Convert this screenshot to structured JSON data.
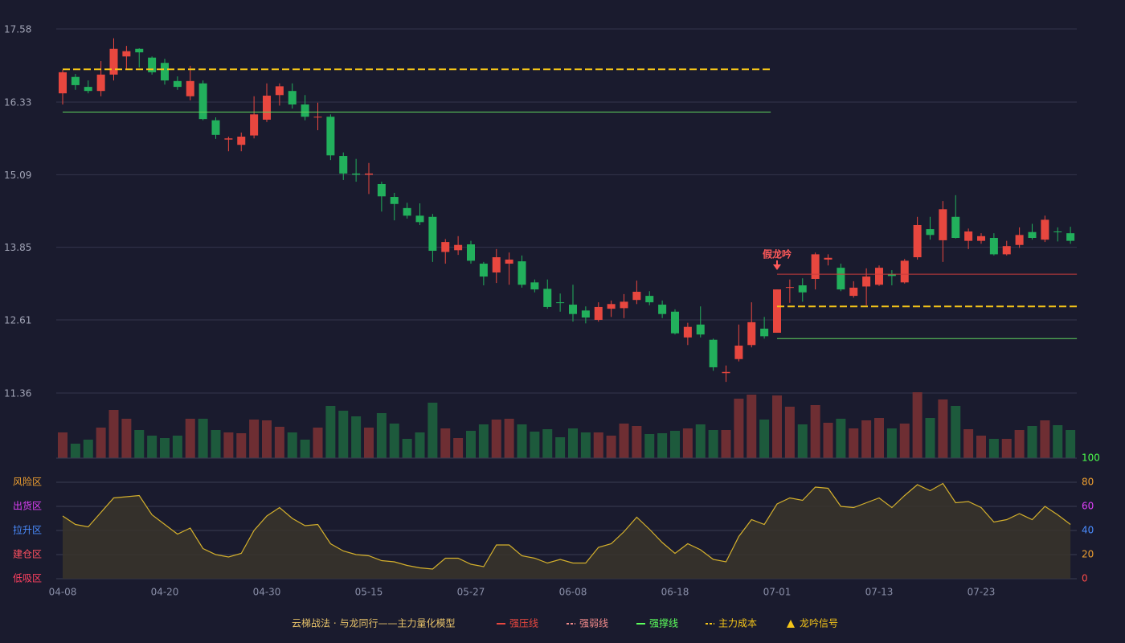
{
  "chart_data": {
    "type": "candlestick",
    "title": "云梯战法 · 与龙同行——主力量化模型",
    "categories": [
      "04-08",
      null,
      null,
      null,
      null,
      null,
      null,
      null,
      "04-20",
      null,
      null,
      null,
      null,
      null,
      null,
      null,
      "04-30",
      null,
      null,
      null,
      null,
      null,
      null,
      null,
      "05-15",
      null,
      null,
      null,
      null,
      null,
      null,
      null,
      "05-27",
      null,
      null,
      null,
      null,
      null,
      null,
      null,
      "06-08",
      null,
      null,
      null,
      null,
      null,
      null,
      null,
      "06-18",
      null,
      null,
      null,
      null,
      null,
      null,
      null,
      "07-01",
      null,
      null,
      null,
      null,
      null,
      null,
      null,
      "07-13",
      null,
      null,
      null,
      null,
      null,
      null,
      null,
      "07-23",
      null,
      null,
      null,
      null,
      null,
      null,
      null
    ],
    "open": [
      16.48,
      16.76,
      16.59,
      16.52,
      16.8,
      17.11,
      17.24,
      17.09,
      17.0,
      16.69,
      16.43,
      16.65,
      16.02,
      15.69,
      15.6,
      15.76,
      16.03,
      16.45,
      16.52,
      16.29,
      16.07,
      16.08,
      15.41,
      15.11,
      15.09,
      14.93,
      14.71,
      14.52,
      14.39,
      14.37,
      13.77,
      13.8,
      13.9,
      13.57,
      13.42,
      13.57,
      13.61,
      13.25,
      13.14,
      12.91,
      12.87,
      12.77,
      12.61,
      12.8,
      12.81,
      12.95,
      13.02,
      12.87,
      12.75,
      12.31,
      12.53,
      12.27,
      11.7,
      11.94,
      12.18,
      12.46,
      12.39,
      13.16,
      13.2,
      13.31,
      13.64,
      13.5,
      13.02,
      13.18,
      13.21,
      13.39,
      13.25,
      13.68,
      14.16,
      13.97,
      14.37,
      13.96,
      13.96,
      14.01,
      13.73,
      13.89,
      14.11,
      13.98,
      14.12,
      14.09
    ],
    "close": [
      16.84,
      16.62,
      16.52,
      16.8,
      17.24,
      17.2,
      17.18,
      16.84,
      16.7,
      16.59,
      16.69,
      16.04,
      15.77,
      15.71,
      15.74,
      16.12,
      16.44,
      16.6,
      16.29,
      16.08,
      16.08,
      15.42,
      15.11,
      15.09,
      15.11,
      14.72,
      14.59,
      14.39,
      14.28,
      13.79,
      13.94,
      13.89,
      13.62,
      13.35,
      13.68,
      13.64,
      13.21,
      13.13,
      12.83,
      12.9,
      12.71,
      12.65,
      12.83,
      12.88,
      12.92,
      13.09,
      12.91,
      12.71,
      12.38,
      12.49,
      12.36,
      11.8,
      11.72,
      12.17,
      12.57,
      12.33,
      13.13,
      13.17,
      13.08,
      13.73,
      13.67,
      13.13,
      13.16,
      13.35,
      13.5,
      13.36,
      13.62,
      14.23,
      14.06,
      14.5,
      14.01,
      14.12,
      14.04,
      13.73,
      13.87,
      14.06,
      14.01,
      14.32,
      14.11,
      13.96
    ],
    "high": [
      16.88,
      16.81,
      16.7,
      17.03,
      17.42,
      17.29,
      17.25,
      17.11,
      17.07,
      16.77,
      16.95,
      16.7,
      16.07,
      15.74,
      15.81,
      16.43,
      16.65,
      16.65,
      16.65,
      16.45,
      16.32,
      16.12,
      15.47,
      15.36,
      15.29,
      14.97,
      14.78,
      14.61,
      14.6,
      14.42,
      13.99,
      14.04,
      13.96,
      13.6,
      13.82,
      13.76,
      13.71,
      13.3,
      13.3,
      13.06,
      13.21,
      12.84,
      12.91,
      12.94,
      13.05,
      13.28,
      13.1,
      12.94,
      12.79,
      12.56,
      12.84,
      12.29,
      11.83,
      12.53,
      12.91,
      12.66,
      13.13,
      13.3,
      13.32,
      13.76,
      13.73,
      13.57,
      13.27,
      13.49,
      13.54,
      13.46,
      13.65,
      14.37,
      14.37,
      14.64,
      14.74,
      14.17,
      14.09,
      14.09,
      13.96,
      14.19,
      14.25,
      14.39,
      14.19,
      14.2
    ],
    "low": [
      16.29,
      16.54,
      16.48,
      16.43,
      16.7,
      16.89,
      16.92,
      16.8,
      16.63,
      16.54,
      16.36,
      16.02,
      15.7,
      15.49,
      15.49,
      15.71,
      15.99,
      16.27,
      16.22,
      16.02,
      15.85,
      15.34,
      15.0,
      14.97,
      14.76,
      14.46,
      14.31,
      14.34,
      14.23,
      13.6,
      13.57,
      13.72,
      13.57,
      13.2,
      13.24,
      13.21,
      13.16,
      13.08,
      12.8,
      12.75,
      12.58,
      12.55,
      12.58,
      12.66,
      12.64,
      12.88,
      12.86,
      12.64,
      12.36,
      12.18,
      12.31,
      11.74,
      11.55,
      11.9,
      12.14,
      12.29,
      12.39,
      12.9,
      12.92,
      13.13,
      13.54,
      13.1,
      12.99,
      12.86,
      13.19,
      13.2,
      13.23,
      13.64,
      13.98,
      13.6,
      14.0,
      13.82,
      13.91,
      13.71,
      13.71,
      13.84,
      13.98,
      13.94,
      13.95,
      13.91
    ],
    "up_color": "#e8473f",
    "down_color": "#22b05c",
    "ylim": [
      11.36,
      17.58
    ],
    "yticks": [
      17.58,
      16.33,
      15.09,
      13.85,
      12.61,
      11.36
    ],
    "grid": true,
    "volume": [
      32,
      18,
      23,
      38,
      60,
      49,
      35,
      28,
      25,
      28,
      49,
      49,
      35,
      32,
      31,
      48,
      47,
      39,
      32,
      23,
      38,
      65,
      59,
      52,
      38,
      56,
      43,
      24,
      32,
      69,
      37,
      25,
      34,
      42,
      48,
      49,
      42,
      33,
      36,
      26,
      37,
      32,
      32,
      28,
      43,
      40,
      30,
      31,
      34,
      37,
      42,
      35,
      35,
      74,
      79,
      48,
      78,
      64,
      42,
      66,
      44,
      49,
      37,
      47,
      50,
      37,
      43,
      82,
      50,
      73,
      65,
      36,
      28,
      24,
      24,
      35,
      40,
      47,
      41,
      35
    ],
    "volume_up_color": "#6e2e33",
    "volume_down_color": "#1d5a3c",
    "levels": [
      {
        "value": 16.89,
        "from": 0,
        "to": 55,
        "color": "#f5c518",
        "dashed": true
      },
      {
        "value": 16.16,
        "from": 0,
        "to": 55,
        "color": "#5fd35f",
        "dashed": false
      },
      {
        "value": 13.39,
        "from": 56,
        "to": 79,
        "color": "#c83c3c",
        "dashed": false
      },
      {
        "value": 12.84,
        "from": 56,
        "to": 79,
        "color": "#f5c518",
        "dashed": true
      },
      {
        "value": 12.29,
        "from": 56,
        "to": 79,
        "color": "#5fd35f",
        "dashed": false
      }
    ],
    "signal": {
      "label": "假龙吟",
      "index": 56,
      "color": "#ff5a5a"
    },
    "indicator": {
      "values": [
        52,
        45,
        43,
        55,
        67,
        68,
        69,
        53,
        45,
        37,
        42,
        25,
        20,
        18,
        21,
        40,
        52,
        59,
        50,
        44,
        45,
        29,
        23,
        20,
        19,
        15,
        14,
        11,
        9,
        8,
        17,
        17,
        12,
        10,
        28,
        28,
        19,
        17,
        13,
        16,
        13,
        13,
        26,
        29,
        39,
        51,
        41,
        30,
        21,
        29,
        24,
        16,
        14,
        35,
        49,
        45,
        62,
        67,
        65,
        76,
        75,
        60,
        59,
        63,
        67,
        59,
        69,
        78,
        73,
        79,
        63,
        64,
        59,
        47,
        49,
        54,
        49,
        60,
        53,
        45
      ],
      "color": "#d4b02c",
      "ylim": [
        0,
        100
      ],
      "yticks": [
        0,
        20,
        40,
        60,
        80,
        100
      ],
      "ytick_colors": [
        "#ff4a4a",
        "#f0a030",
        "#4a8cff",
        "#e040fb",
        "#f0a030",
        "#4cff4c"
      ],
      "zones": [
        {
          "label": "风险区",
          "value": 80,
          "color": "#f0a030"
        },
        {
          "label": "出货区",
          "value": 60,
          "color": "#e040fb"
        },
        {
          "label": "拉升区",
          "value": 40,
          "color": "#4a8cff"
        },
        {
          "label": "建仓区",
          "value": 20,
          "color": "#ff5060"
        },
        {
          "label": "低吸区",
          "value": 0,
          "color": "#ff4060"
        }
      ]
    },
    "legend": [
      {
        "name": "强压线",
        "color": "#e8473f",
        "style": "solid"
      },
      {
        "name": "强弱线",
        "color": "#f08a8a",
        "style": "dashed"
      },
      {
        "name": "强撑线",
        "color": "#5cff5c",
        "style": "solid"
      },
      {
        "name": "主力成本",
        "color": "#f5c518",
        "style": "dashed"
      },
      {
        "name": "龙吟信号",
        "color": "#f5c518",
        "style": "triangle"
      }
    ]
  }
}
